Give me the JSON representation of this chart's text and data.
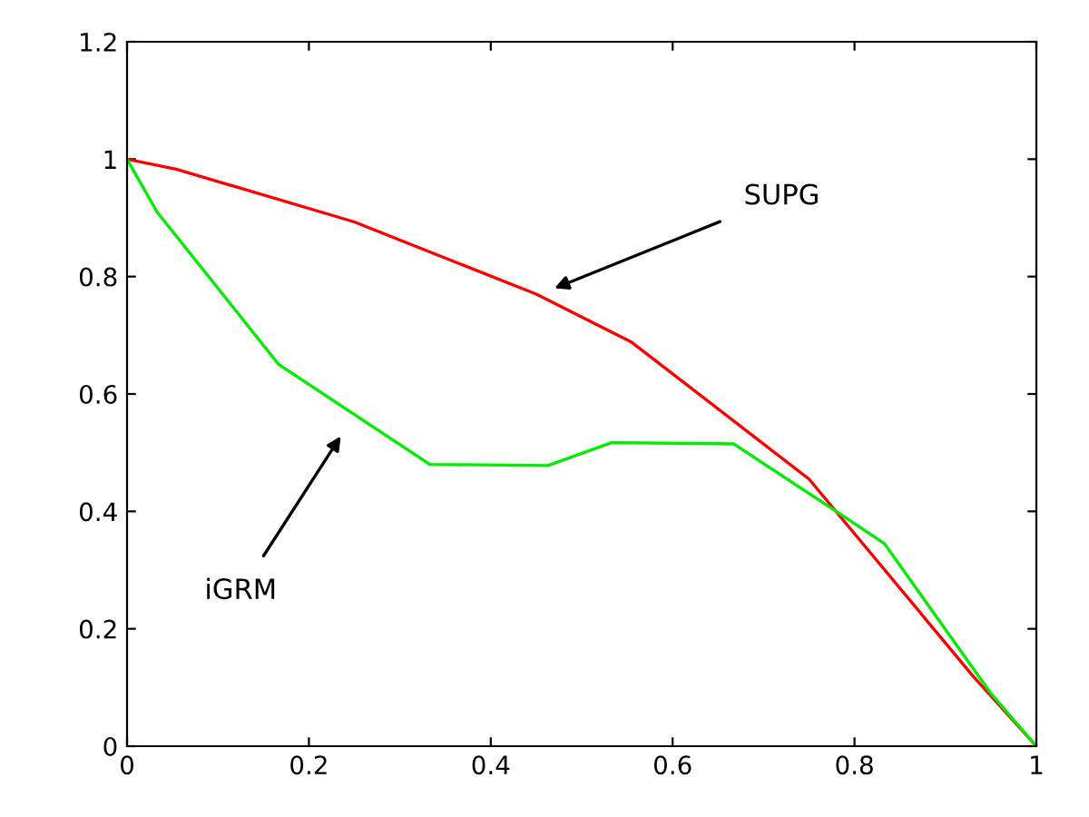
{
  "chart_data": {
    "type": "line",
    "series": [
      {
        "color": "#ff0000",
        "x": [
          0,
          0.054,
          0.25,
          0.45,
          0.555,
          0.75,
          0.93,
          1
        ],
        "values": [
          1,
          0.983,
          0.893,
          0.77,
          0.688,
          0.455,
          0.12,
          0
        ]
      },
      {
        "color": "#00ee00",
        "x": [
          0,
          0.033,
          0.167,
          0.333,
          0.463,
          0.533,
          0.667,
          0.78,
          0.833,
          0.95,
          1
        ],
        "values": [
          1,
          0.91,
          0.65,
          0.48,
          0.478,
          0.517,
          0.515,
          0.4,
          0.345,
          0.09,
          0
        ]
      }
    ],
    "annotations": [
      "SUPG",
      "iGRM"
    ],
    "xlim": [
      0,
      1
    ],
    "xticks": [
      0,
      0.2,
      0.4,
      0.6,
      0.8,
      1
    ],
    "ylim": [
      0,
      1.2
    ],
    "yticks": [
      0,
      0.2,
      0.4,
      0.6,
      0.8,
      1,
      1.2
    ],
    "grid": false,
    "legend": false
  }
}
